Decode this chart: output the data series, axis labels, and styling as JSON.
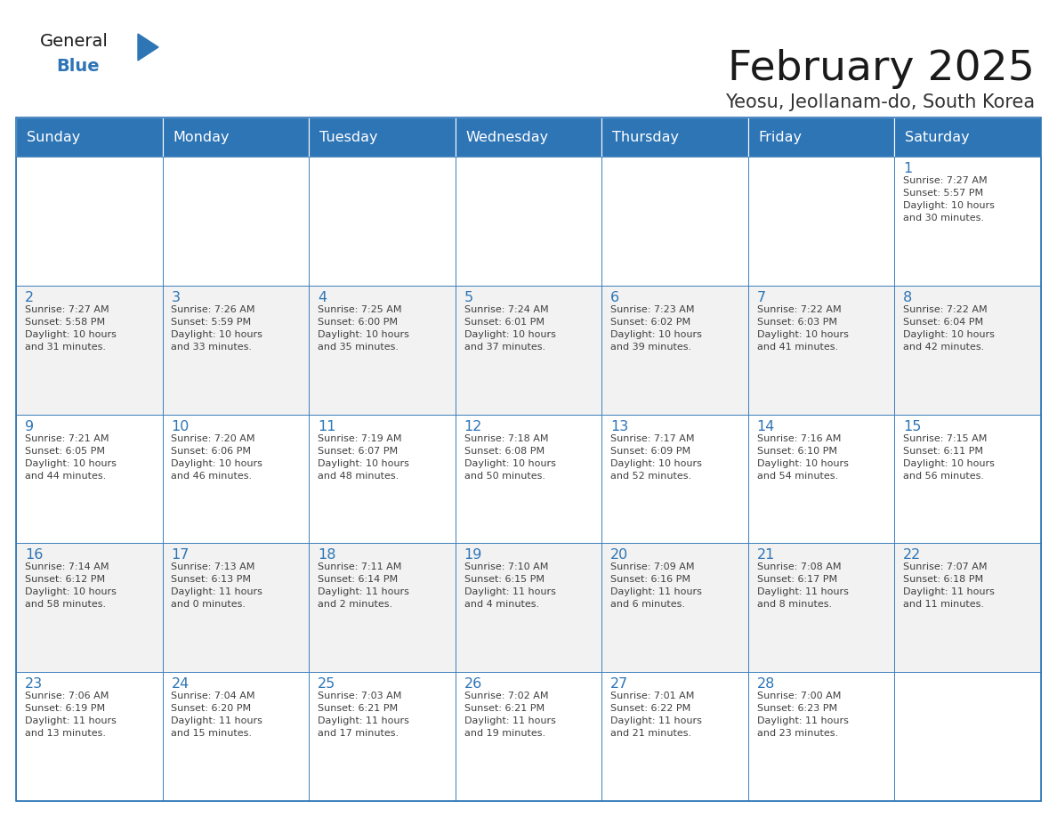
{
  "title": "February 2025",
  "subtitle": "Yeosu, Jeollanam-do, South Korea",
  "weekdays": [
    "Sunday",
    "Monday",
    "Tuesday",
    "Wednesday",
    "Thursday",
    "Friday",
    "Saturday"
  ],
  "header_bg": "#2E75B6",
  "header_text": "#FFFFFF",
  "cell_bg_white": "#FFFFFF",
  "cell_bg_gray": "#F2F2F2",
  "border_color": "#2E75B6",
  "title_color": "#1A1A1A",
  "subtitle_color": "#333333",
  "day_number_color": "#2E75B6",
  "cell_text_color": "#404040",
  "logo_general_color": "#1A1A1A",
  "logo_blue_color": "#2E75B6",
  "days": [
    {
      "date": 1,
      "row": 0,
      "col": 6,
      "sunrise": "7:27 AM",
      "sunset": "5:57 PM",
      "daylight_hours": 10,
      "daylight_minutes": 30
    },
    {
      "date": 2,
      "row": 1,
      "col": 0,
      "sunrise": "7:27 AM",
      "sunset": "5:58 PM",
      "daylight_hours": 10,
      "daylight_minutes": 31
    },
    {
      "date": 3,
      "row": 1,
      "col": 1,
      "sunrise": "7:26 AM",
      "sunset": "5:59 PM",
      "daylight_hours": 10,
      "daylight_minutes": 33
    },
    {
      "date": 4,
      "row": 1,
      "col": 2,
      "sunrise": "7:25 AM",
      "sunset": "6:00 PM",
      "daylight_hours": 10,
      "daylight_minutes": 35
    },
    {
      "date": 5,
      "row": 1,
      "col": 3,
      "sunrise": "7:24 AM",
      "sunset": "6:01 PM",
      "daylight_hours": 10,
      "daylight_minutes": 37
    },
    {
      "date": 6,
      "row": 1,
      "col": 4,
      "sunrise": "7:23 AM",
      "sunset": "6:02 PM",
      "daylight_hours": 10,
      "daylight_minutes": 39
    },
    {
      "date": 7,
      "row": 1,
      "col": 5,
      "sunrise": "7:22 AM",
      "sunset": "6:03 PM",
      "daylight_hours": 10,
      "daylight_minutes": 41
    },
    {
      "date": 8,
      "row": 1,
      "col": 6,
      "sunrise": "7:22 AM",
      "sunset": "6:04 PM",
      "daylight_hours": 10,
      "daylight_minutes": 42
    },
    {
      "date": 9,
      "row": 2,
      "col": 0,
      "sunrise": "7:21 AM",
      "sunset": "6:05 PM",
      "daylight_hours": 10,
      "daylight_minutes": 44
    },
    {
      "date": 10,
      "row": 2,
      "col": 1,
      "sunrise": "7:20 AM",
      "sunset": "6:06 PM",
      "daylight_hours": 10,
      "daylight_minutes": 46
    },
    {
      "date": 11,
      "row": 2,
      "col": 2,
      "sunrise": "7:19 AM",
      "sunset": "6:07 PM",
      "daylight_hours": 10,
      "daylight_minutes": 48
    },
    {
      "date": 12,
      "row": 2,
      "col": 3,
      "sunrise": "7:18 AM",
      "sunset": "6:08 PM",
      "daylight_hours": 10,
      "daylight_minutes": 50
    },
    {
      "date": 13,
      "row": 2,
      "col": 4,
      "sunrise": "7:17 AM",
      "sunset": "6:09 PM",
      "daylight_hours": 10,
      "daylight_minutes": 52
    },
    {
      "date": 14,
      "row": 2,
      "col": 5,
      "sunrise": "7:16 AM",
      "sunset": "6:10 PM",
      "daylight_hours": 10,
      "daylight_minutes": 54
    },
    {
      "date": 15,
      "row": 2,
      "col": 6,
      "sunrise": "7:15 AM",
      "sunset": "6:11 PM",
      "daylight_hours": 10,
      "daylight_minutes": 56
    },
    {
      "date": 16,
      "row": 3,
      "col": 0,
      "sunrise": "7:14 AM",
      "sunset": "6:12 PM",
      "daylight_hours": 10,
      "daylight_minutes": 58
    },
    {
      "date": 17,
      "row": 3,
      "col": 1,
      "sunrise": "7:13 AM",
      "sunset": "6:13 PM",
      "daylight_hours": 11,
      "daylight_minutes": 0
    },
    {
      "date": 18,
      "row": 3,
      "col": 2,
      "sunrise": "7:11 AM",
      "sunset": "6:14 PM",
      "daylight_hours": 11,
      "daylight_minutes": 2
    },
    {
      "date": 19,
      "row": 3,
      "col": 3,
      "sunrise": "7:10 AM",
      "sunset": "6:15 PM",
      "daylight_hours": 11,
      "daylight_minutes": 4
    },
    {
      "date": 20,
      "row": 3,
      "col": 4,
      "sunrise": "7:09 AM",
      "sunset": "6:16 PM",
      "daylight_hours": 11,
      "daylight_minutes": 6
    },
    {
      "date": 21,
      "row": 3,
      "col": 5,
      "sunrise": "7:08 AM",
      "sunset": "6:17 PM",
      "daylight_hours": 11,
      "daylight_minutes": 8
    },
    {
      "date": 22,
      "row": 3,
      "col": 6,
      "sunrise": "7:07 AM",
      "sunset": "6:18 PM",
      "daylight_hours": 11,
      "daylight_minutes": 11
    },
    {
      "date": 23,
      "row": 4,
      "col": 0,
      "sunrise": "7:06 AM",
      "sunset": "6:19 PM",
      "daylight_hours": 11,
      "daylight_minutes": 13
    },
    {
      "date": 24,
      "row": 4,
      "col": 1,
      "sunrise": "7:04 AM",
      "sunset": "6:20 PM",
      "daylight_hours": 11,
      "daylight_minutes": 15
    },
    {
      "date": 25,
      "row": 4,
      "col": 2,
      "sunrise": "7:03 AM",
      "sunset": "6:21 PM",
      "daylight_hours": 11,
      "daylight_minutes": 17
    },
    {
      "date": 26,
      "row": 4,
      "col": 3,
      "sunrise": "7:02 AM",
      "sunset": "6:21 PM",
      "daylight_hours": 11,
      "daylight_minutes": 19
    },
    {
      "date": 27,
      "row": 4,
      "col": 4,
      "sunrise": "7:01 AM",
      "sunset": "6:22 PM",
      "daylight_hours": 11,
      "daylight_minutes": 21
    },
    {
      "date": 28,
      "row": 4,
      "col": 5,
      "sunrise": "7:00 AM",
      "sunset": "6:23 PM",
      "daylight_hours": 11,
      "daylight_minutes": 23
    }
  ]
}
